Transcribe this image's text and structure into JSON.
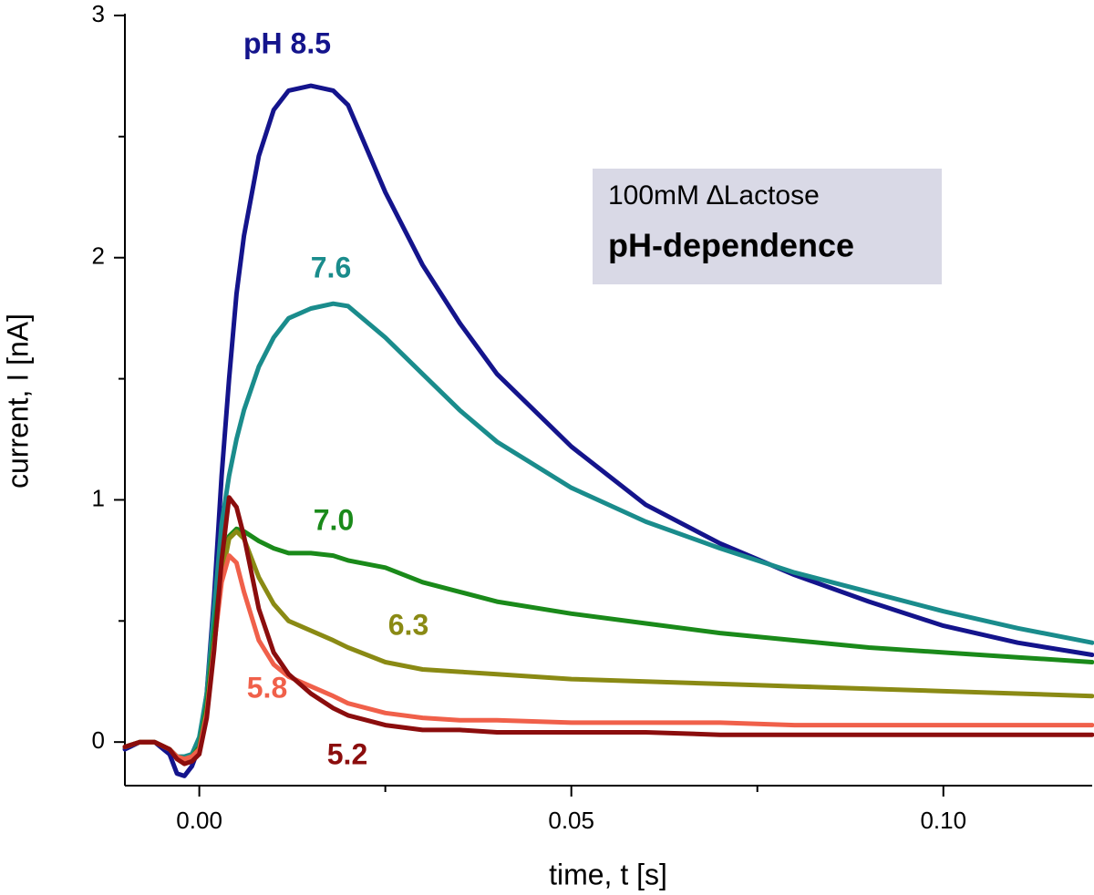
{
  "chart_data": {
    "type": "line",
    "x_label": "time, t [s]",
    "y_label": "current, I [nA]",
    "annotations": [
      "100mM ∆Lactose",
      "pH-dependence"
    ],
    "x": [
      -0.01,
      -0.008,
      -0.006,
      -0.004,
      -0.003,
      -0.002,
      -0.001,
      0,
      0.001,
      0.002,
      0.003,
      0.004,
      0.005,
      0.006,
      0.008,
      0.01,
      0.012,
      0.015,
      0.018,
      0.02,
      0.025,
      0.03,
      0.035,
      0.04,
      0.05,
      0.06,
      0.07,
      0.08,
      0.09,
      0.1,
      0.11,
      0.12
    ],
    "series": [
      {
        "name": "pH 8.5",
        "color": "#14148c",
        "values": [
          -0.03,
          0.0,
          0.0,
          -0.05,
          -0.13,
          -0.14,
          -0.1,
          -0.02,
          0.2,
          0.6,
          1.1,
          1.5,
          1.85,
          2.09,
          2.42,
          2.61,
          2.69,
          2.71,
          2.69,
          2.63,
          2.27,
          1.97,
          1.73,
          1.52,
          1.22,
          0.98,
          0.82,
          0.69,
          0.58,
          0.48,
          0.41,
          0.36
        ]
      },
      {
        "name": "7.6",
        "color": "#1a8c8c",
        "values": [
          -0.02,
          0.0,
          0.0,
          -0.03,
          -0.06,
          -0.06,
          -0.05,
          0.02,
          0.2,
          0.55,
          0.9,
          1.1,
          1.25,
          1.37,
          1.55,
          1.67,
          1.75,
          1.79,
          1.81,
          1.8,
          1.67,
          1.52,
          1.37,
          1.24,
          1.05,
          0.91,
          0.8,
          0.7,
          0.62,
          0.54,
          0.47,
          0.41
        ]
      },
      {
        "name": "7.0",
        "color": "#1a8a1a",
        "values": [
          -0.02,
          0.0,
          0.0,
          -0.03,
          -0.06,
          -0.07,
          -0.06,
          -0.02,
          0.15,
          0.45,
          0.72,
          0.85,
          0.88,
          0.87,
          0.83,
          0.8,
          0.78,
          0.78,
          0.77,
          0.75,
          0.72,
          0.66,
          0.62,
          0.58,
          0.53,
          0.49,
          0.45,
          0.42,
          0.39,
          0.37,
          0.35,
          0.33
        ]
      },
      {
        "name": "6.3",
        "color": "#8a8a14",
        "values": [
          -0.02,
          0.0,
          0.0,
          -0.03,
          -0.06,
          -0.07,
          -0.06,
          -0.03,
          0.12,
          0.4,
          0.68,
          0.84,
          0.87,
          0.84,
          0.68,
          0.57,
          0.5,
          0.46,
          0.42,
          0.39,
          0.33,
          0.3,
          0.29,
          0.28,
          0.26,
          0.25,
          0.24,
          0.23,
          0.22,
          0.21,
          0.2,
          0.19
        ]
      },
      {
        "name": "5.8",
        "color": "#f0604a",
        "values": [
          -0.02,
          0.0,
          0.0,
          -0.03,
          -0.06,
          -0.07,
          -0.06,
          -0.03,
          0.12,
          0.4,
          0.66,
          0.77,
          0.74,
          0.62,
          0.42,
          0.32,
          0.27,
          0.23,
          0.19,
          0.16,
          0.12,
          0.1,
          0.09,
          0.09,
          0.08,
          0.08,
          0.08,
          0.07,
          0.07,
          0.07,
          0.07,
          0.07
        ]
      },
      {
        "name": "5.2",
        "color": "#8b0d0d",
        "values": [
          -0.02,
          0.0,
          0.0,
          -0.03,
          -0.07,
          -0.09,
          -0.08,
          -0.05,
          0.1,
          0.38,
          0.75,
          1.01,
          0.97,
          0.85,
          0.55,
          0.37,
          0.28,
          0.2,
          0.14,
          0.11,
          0.07,
          0.05,
          0.05,
          0.04,
          0.04,
          0.04,
          0.03,
          0.03,
          0.03,
          0.03,
          0.03,
          0.03
        ]
      }
    ],
    "xlim": [
      -0.01,
      0.12
    ],
    "ylim": [
      -0.18,
      3
    ],
    "xticks": [
      {
        "value": 0,
        "label": "0.00"
      },
      0.05,
      {
        "value": 0.1,
        "label": "0.10"
      }
    ],
    "xminor_ticks": [
      0.025,
      0.075
    ],
    "yticks": [
      0,
      1,
      2,
      3
    ],
    "yminor_ticks": [
      0.5,
      1.5,
      2.5
    ],
    "grid": false
  }
}
